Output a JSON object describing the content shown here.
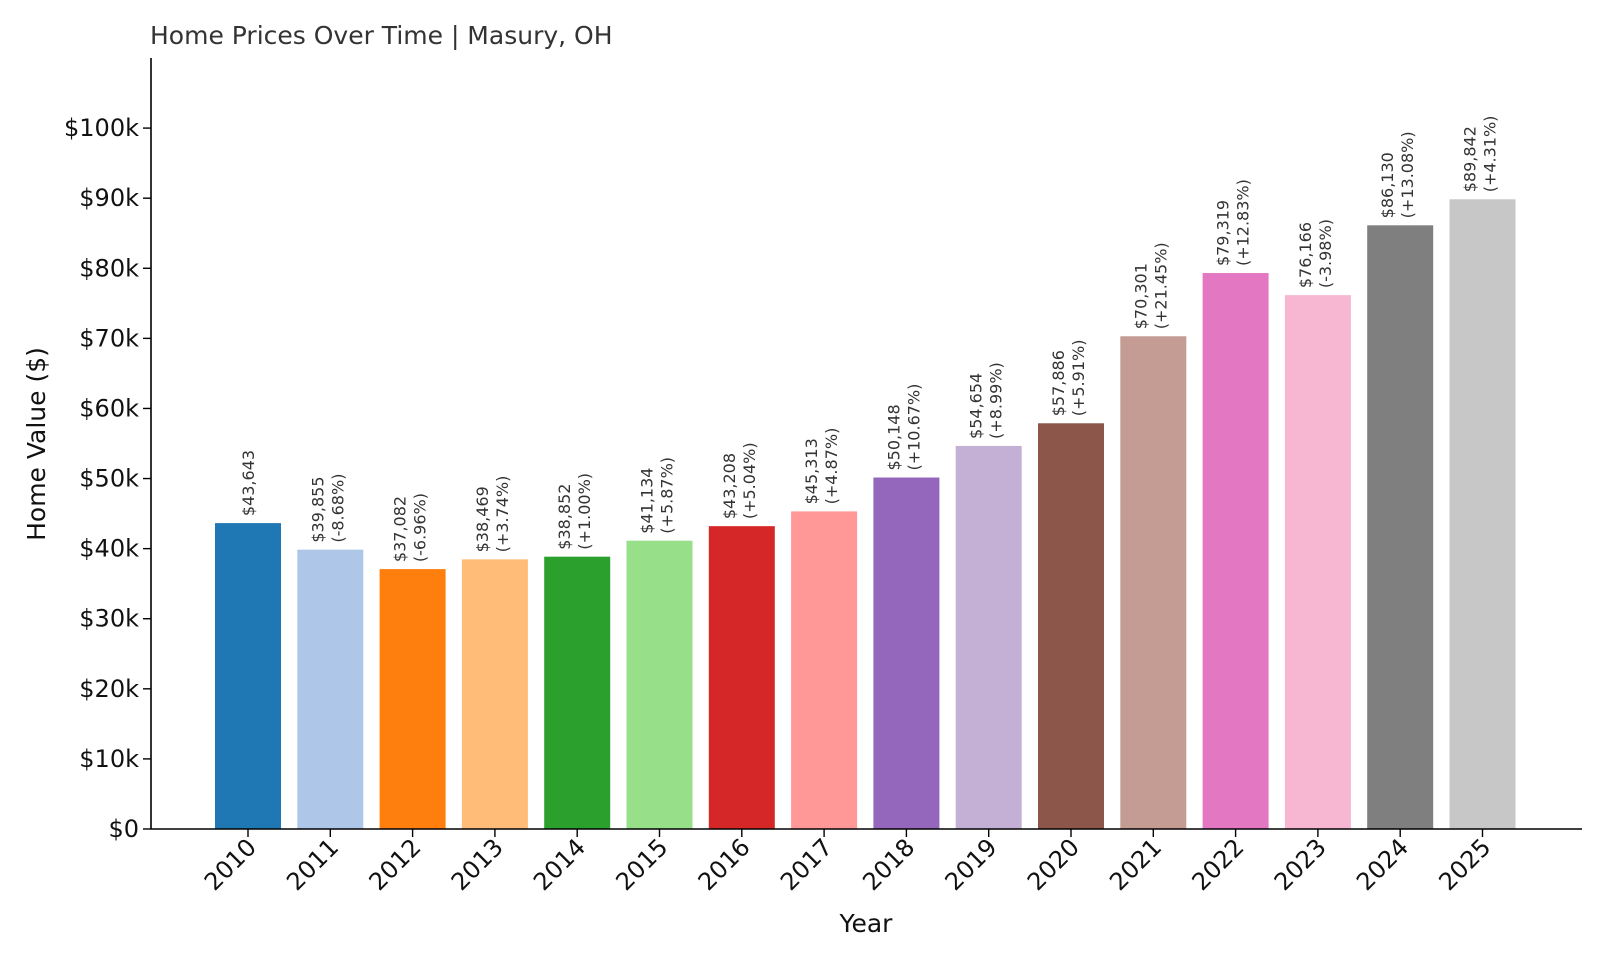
{
  "chart_data": {
    "type": "bar",
    "title": "Home Prices Over Time | Masury, OH",
    "xlabel": "Year",
    "ylabel": "Home Value ($)",
    "ylim": [
      0,
      110000
    ],
    "yticks": [
      0,
      10000,
      20000,
      30000,
      40000,
      50000,
      60000,
      70000,
      80000,
      90000,
      100000
    ],
    "ytick_labels": [
      "$0",
      "$10k",
      "$20k",
      "$30k",
      "$40k",
      "$50k",
      "$60k",
      "$70k",
      "$80k",
      "$90k",
      "$100k"
    ],
    "grid": false,
    "categories": [
      "2010",
      "2011",
      "2012",
      "2013",
      "2014",
      "2015",
      "2016",
      "2017",
      "2018",
      "2019",
      "2020",
      "2021",
      "2022",
      "2023",
      "2024",
      "2025"
    ],
    "values": [
      43643,
      39855,
      37082,
      38469,
      38852,
      41134,
      43208,
      45313,
      50148,
      54654,
      57886,
      70301,
      79319,
      76166,
      86130,
      89842
    ],
    "value_labels": [
      "$43,643",
      "$39,855",
      "$37,082",
      "$38,469",
      "$38,852",
      "$41,134",
      "$43,208",
      "$45,313",
      "$50,148",
      "$54,654",
      "$57,886",
      "$70,301",
      "$79,319",
      "$76,166",
      "$86,130",
      "$89,842"
    ],
    "change_labels": [
      "",
      "(-8.68%)",
      "(-6.96%)",
      "(+3.74%)",
      "(+1.00%)",
      "(+5.87%)",
      "(+5.04%)",
      "(+4.87%)",
      "(+10.67%)",
      "(+8.99%)",
      "(+5.91%)",
      "(+21.45%)",
      "(+12.83%)",
      "(-3.98%)",
      "(+13.08%)",
      "(+4.31%)"
    ],
    "colors": [
      "#1f77b4",
      "#aec7e8",
      "#ff7f0e",
      "#ffbb78",
      "#2ca02c",
      "#98df8a",
      "#d62728",
      "#ff9896",
      "#9467bd",
      "#c5b0d5",
      "#8c564b",
      "#c49c94",
      "#e377c2",
      "#f7b6d2",
      "#7f7f7f",
      "#c7c7c7"
    ]
  }
}
